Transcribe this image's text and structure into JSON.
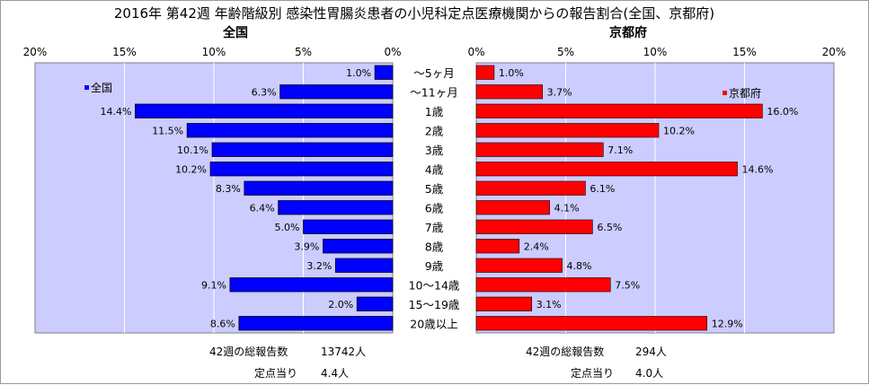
{
  "chart_data": {
    "type": "bar",
    "orientation": "horizontal",
    "layout": "butterfly",
    "title": "2016年 第42週 年齢階級別 感染性胃腸炎患者の小児科定点医療機関からの報告割合(全国、京都府)",
    "categories": [
      "～5ヶ月",
      "～11ヶ月",
      "1歳",
      "2歳",
      "3歳",
      "4歳",
      "5歳",
      "6歳",
      "7歳",
      "8歳",
      "9歳",
      "10～14歳",
      "15～19歳",
      "20歳以上"
    ],
    "panels": [
      {
        "side": "left",
        "header": "全国",
        "legend": "全国",
        "color": "#0000ff",
        "values": [
          1.0,
          6.3,
          14.4,
          11.5,
          10.1,
          10.2,
          8.3,
          6.4,
          5.0,
          3.9,
          3.2,
          9.1,
          2.0,
          8.6
        ],
        "value_labels": [
          "1.0%",
          "6.3%",
          "14.4%",
          "11.5%",
          "10.1%",
          "10.2%",
          "8.3%",
          "6.4%",
          "5.0%",
          "3.9%",
          "3.2%",
          "9.1%",
          "2.0%",
          "8.6%"
        ],
        "total_label": "42週の総報告数",
        "total_value": "13742人",
        "per_site_label": "定点当り",
        "per_site_value": "4.4人"
      },
      {
        "side": "right",
        "header": "京都府",
        "legend": "京都府",
        "color": "#ff0000",
        "values": [
          1.0,
          3.7,
          16.0,
          10.2,
          7.1,
          14.6,
          6.1,
          4.1,
          6.5,
          2.4,
          4.8,
          7.5,
          3.1,
          12.9
        ],
        "value_labels": [
          "1.0%",
          "3.7%",
          "16.0%",
          "10.2%",
          "7.1%",
          "14.6%",
          "6.1%",
          "4.1%",
          "6.5%",
          "2.4%",
          "4.8%",
          "7.5%",
          "3.1%",
          "12.9%"
        ],
        "total_label": "42週の総報告数",
        "total_value": "294人",
        "per_site_label": "定点当り",
        "per_site_value": "4.0人"
      }
    ],
    "xlim": [
      0,
      20
    ],
    "ticks": [
      0,
      5,
      10,
      15,
      20
    ],
    "tick_labels": [
      "0%",
      "5%",
      "10%",
      "15%",
      "20%"
    ],
    "plot_background": "#ccccff",
    "grid": true,
    "legend_position": "top-left"
  }
}
